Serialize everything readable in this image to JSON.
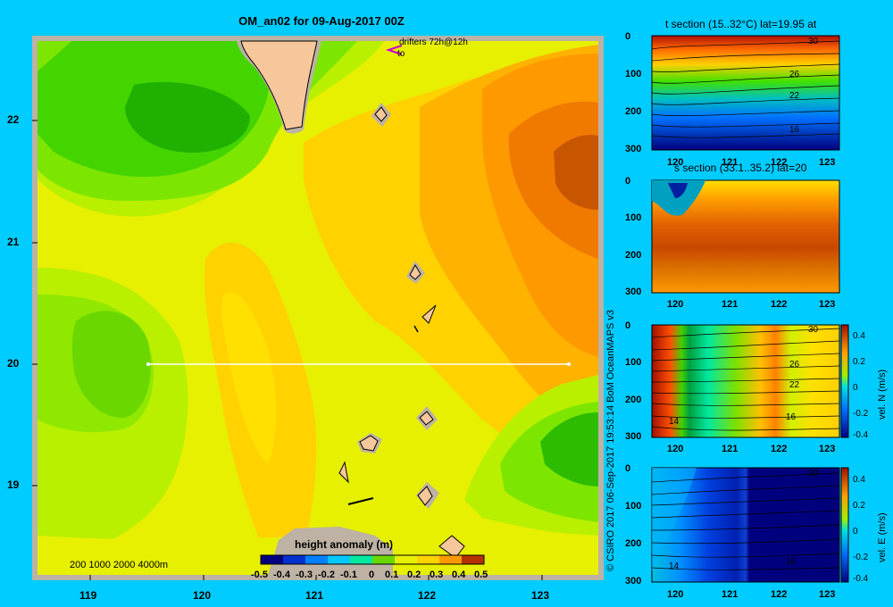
{
  "main_map": {
    "title": "OM_an02 for 09-Aug-2017 00Z",
    "drifters_label": "drifters 72h@12h",
    "drifters_sub": "to",
    "depth_scale": "200  1000  2000  4000m",
    "x_ticks": [
      "119",
      "120",
      "121",
      "122",
      "123"
    ],
    "y_ticks": [
      "22",
      "21",
      "20",
      "19"
    ]
  },
  "colorbar": {
    "label": "height anomaly  (m)",
    "ticks": [
      "-0.5",
      "-0.4",
      "-0.3",
      "-0.2",
      "-0.1",
      "0",
      "0.1",
      "0.2",
      "0.3",
      "0.4",
      "0.5"
    ]
  },
  "credit": "© CSIRO 2017   06-Sep-2017 19:53:14 BoM OceanMAPS v3",
  "sections": {
    "t_title": "t section (15..32°C) lat=19.95 at",
    "s_title": "s section (33.1..35.2) lat=20",
    "depth_ticks": [
      "0",
      "100",
      "200",
      "300"
    ],
    "lon_ticks": [
      "120",
      "121",
      "122",
      "123"
    ],
    "t_contours": [
      "30",
      "26",
      "22",
      "16"
    ],
    "vn_contours": [
      "30",
      "26",
      "22",
      "16",
      "14"
    ],
    "ve_contours": [
      "30",
      "16",
      "14"
    ],
    "vn_label": "vel. N (m/s)",
    "ve_label": "vel. E (m/s)",
    "vel_ticks": [
      "0.4",
      "0.2",
      "0",
      "-0.2",
      "-0.4"
    ]
  },
  "colors": {
    "background": "#00ccff",
    "land": "#f6c79a",
    "frame": "#bdb2a4",
    "section_line": "#ffffff",
    "drifter": "#cc00cc"
  },
  "chart_data": [
    {
      "type": "heatmap",
      "title": "OM_an02 for 09-Aug-2017 00Z",
      "xlim": [
        118.5,
        123.5
      ],
      "ylim": [
        18.3,
        22.65
      ],
      "colorbar_label": "height anomaly (m)",
      "colorbar_range": [
        -0.5,
        0.5
      ],
      "section_line": {
        "lat": 20.0,
        "lon": [
          119.5,
          123.2
        ]
      }
    },
    {
      "type": "heatmap",
      "title": "t section (15..32°C) lat=19.95 at",
      "xlim": [
        119.5,
        123.3
      ],
      "ylim": [
        300,
        0
      ]
    },
    {
      "type": "heatmap",
      "title": "s section (33.1..35.2) lat=20",
      "xlim": [
        119.5,
        123.3
      ],
      "ylim": [
        300,
        0
      ]
    },
    {
      "type": "heatmap",
      "ylabel": "vel. N (m/s)",
      "xlim": [
        119.5,
        123.3
      ],
      "ylim": [
        300,
        0
      ],
      "colorbar_range": [
        -0.4,
        0.4
      ]
    },
    {
      "type": "heatmap",
      "ylabel": "vel. E (m/s)",
      "xlim": [
        119.5,
        123.3
      ],
      "ylim": [
        300,
        0
      ],
      "colorbar_range": [
        -0.4,
        0.4
      ]
    }
  ]
}
